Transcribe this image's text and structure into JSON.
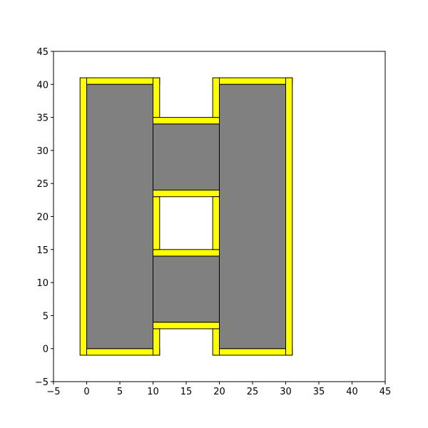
{
  "chart_data": {
    "type": "rectangles",
    "title": "",
    "xlabel": "",
    "ylabel": "",
    "xlim": [
      -5,
      45
    ],
    "ylim": [
      -5,
      45
    ],
    "xticks": [
      "-5",
      "0",
      "5",
      "10",
      "15",
      "20",
      "25",
      "30",
      "35",
      "40",
      "45"
    ],
    "yticks": [
      "-5",
      "0",
      "5",
      "10",
      "15",
      "20",
      "25",
      "30",
      "35",
      "40",
      "45"
    ],
    "grid": false,
    "legend": "none",
    "colors": {
      "frame": "#ffff00",
      "fill": "#808080",
      "edge": "#000000"
    },
    "yellow_rects": [
      {
        "x": -1,
        "y": -1,
        "w": 1,
        "h": 42
      },
      {
        "x": 0,
        "y": 40,
        "w": 11,
        "h": 1
      },
      {
        "x": 0,
        "y": -1,
        "w": 11,
        "h": 1
      },
      {
        "x": 10,
        "y": 35,
        "w": 1,
        "h": 6
      },
      {
        "x": 10,
        "y": 3,
        "w": 10,
        "h": 1
      },
      {
        "x": 10,
        "y": -1,
        "w": 1,
        "h": 4
      },
      {
        "x": 10,
        "y": 14,
        "w": 10,
        "h": 1
      },
      {
        "x": 10,
        "y": 15,
        "w": 1,
        "h": 8
      },
      {
        "x": 10,
        "y": 23,
        "w": 10,
        "h": 1
      },
      {
        "x": 10,
        "y": 34,
        "w": 10,
        "h": 1
      },
      {
        "x": 19,
        "y": -1,
        "w": 1,
        "h": 4
      },
      {
        "x": 19,
        "y": 15,
        "w": 1,
        "h": 8
      },
      {
        "x": 19,
        "y": 35,
        "w": 1,
        "h": 6
      },
      {
        "x": 20,
        "y": 40,
        "w": 11,
        "h": 1
      },
      {
        "x": 20,
        "y": -1,
        "w": 11,
        "h": 1
      },
      {
        "x": 30,
        "y": -1,
        "w": 1,
        "h": 42
      }
    ],
    "gray_rects": [
      {
        "x": 0,
        "y": 0,
        "w": 10,
        "h": 40
      },
      {
        "x": 20,
        "y": 0,
        "w": 10,
        "h": 40
      },
      {
        "x": 10,
        "y": 4,
        "w": 10,
        "h": 10
      },
      {
        "x": 10,
        "y": 24,
        "w": 10,
        "h": 10
      }
    ]
  }
}
